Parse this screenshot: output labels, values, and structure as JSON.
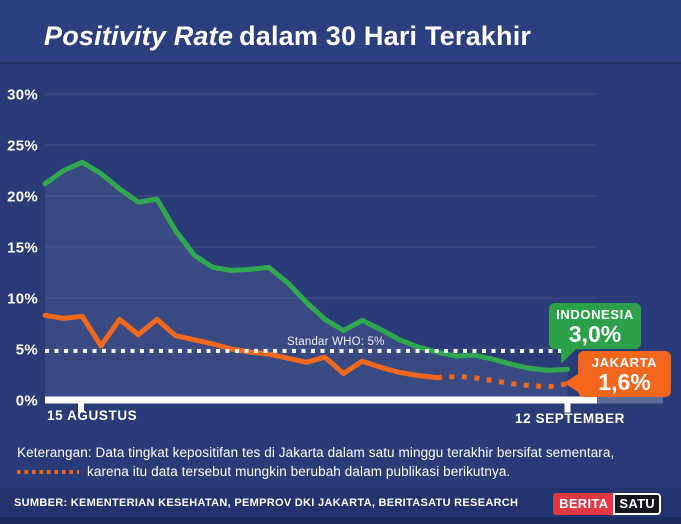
{
  "header": {
    "title_italic": "Positivity Rate",
    "title_rest": "dalam 30 Hari Terakhir"
  },
  "chart_data": {
    "type": "line",
    "title": "Positivity Rate dalam 30 Hari Terakhir",
    "x_period": {
      "start_label": "15 AGUSTUS",
      "end_label": "12 SEPTEMBER",
      "points": 29,
      "unit": "hari"
    },
    "ylim": [
      0,
      30
    ],
    "y_tick_labels": [
      "30%",
      "25%",
      "20%",
      "15%",
      "10%",
      "5%",
      "0%"
    ],
    "grid": "faint horizontal lines every 5%",
    "legend_position": "right-end badges",
    "reference_line": {
      "value": 5,
      "label": "Standar WHO: 5%",
      "style": "white dotted"
    },
    "series": [
      {
        "name": "INDONESIA",
        "color": "#2FA84F",
        "end_label": "3,0%",
        "area_fill": "rgba(255,255,255,0.07)",
        "values": [
          21.2,
          22.5,
          23.3,
          22.2,
          20.7,
          19.4,
          19.7,
          16.6,
          14.2,
          13.0,
          12.7,
          12.8,
          13.0,
          11.5,
          9.6,
          7.9,
          6.8,
          7.8,
          6.9,
          5.9,
          5.2,
          4.7,
          4.3,
          4.4,
          4.0,
          3.5,
          3.1,
          2.9,
          3.0
        ]
      },
      {
        "name": "JAKARTA",
        "color": "#F2681C",
        "end_label": "1,6%",
        "dotted_from_index": 21,
        "values": [
          8.3,
          8.0,
          8.2,
          5.3,
          7.9,
          6.4,
          7.9,
          6.3,
          5.9,
          5.5,
          5.0,
          4.7,
          4.5,
          4.1,
          3.7,
          4.2,
          2.6,
          3.8,
          3.2,
          2.7,
          2.4,
          2.2,
          2.3,
          2.2,
          1.9,
          1.6,
          1.4,
          1.3,
          1.6
        ]
      }
    ]
  },
  "axis": {
    "x_left": "15 AGUSTUS",
    "x_right": "12 SEPTEMBER"
  },
  "who": {
    "label": "Standar WHO: 5%"
  },
  "legend": {
    "indonesia": {
      "label": "INDONESIA",
      "value": "3,0%"
    },
    "jakarta": {
      "label": "JAKARTA",
      "value": "1,6%"
    }
  },
  "keterangan": {
    "line1": "Keterangan: Data tingkat kepositifan tes di Jakarta dalam satu minggu terakhir bersifat sementara,",
    "line2": "karena itu data tersebut mungkin berubah dalam publikasi berikutnya."
  },
  "source": {
    "text": "SUMBER: KEMENTERIAN KESEHATAN, PEMPROV DKI JAKARTA, BERITASATU RESEARCH",
    "logo_berita": "BERITA",
    "logo_satu": "SATU"
  },
  "colors": {
    "background": "#2A3C78",
    "header_background": "#2C3F7E",
    "green": "#2FA84F",
    "orange": "#F2681C",
    "axis": "#FFFFFF",
    "source_bar": "#22336D",
    "logo_red": "#E23744",
    "logo_black": "#10161D"
  }
}
